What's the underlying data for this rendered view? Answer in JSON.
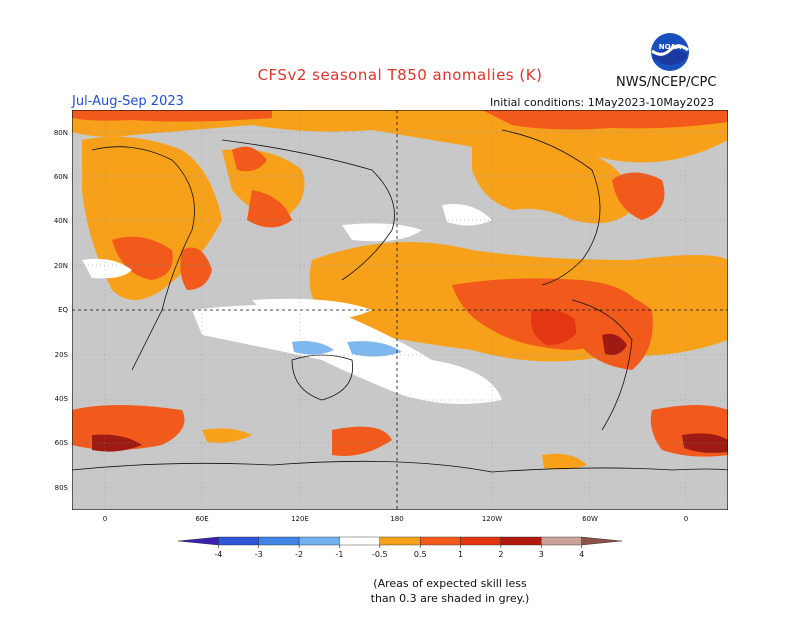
{
  "title": "CFSv2 seasonal T850 anomalies (K)",
  "season": "Jul-Aug-Sep 2023",
  "agency": "NWS/NCEP/CPC",
  "initial_conditions": "Initial conditions: 1May2023-10May2023",
  "logo_text": "NOAA",
  "latitude_labels": [
    "80N",
    "60N",
    "40N",
    "20N",
    "EQ",
    "20S",
    "40S",
    "60S",
    "80S"
  ],
  "longitude_labels": [
    "0",
    "60E",
    "120E",
    "180",
    "120W",
    "60W",
    "0"
  ],
  "colorbar": {
    "labels": [
      "-4",
      "-3",
      "-2",
      "-1",
      "-0.5",
      "0.5",
      "1",
      "2",
      "3",
      "4"
    ],
    "colors": [
      "#3a1fb0",
      "#2e55d8",
      "#3d84e6",
      "#6fb2ef",
      "#ffffff",
      "#f7a11a",
      "#f25a1c",
      "#e33712",
      "#b01a0e",
      "#c9a39a",
      "#8a5246"
    ]
  },
  "note_line1": "(Areas of expected skill less",
  "note_line2": "than 0.3 are shaded in grey.)",
  "colors": {
    "grey": "#c8c8c8",
    "orange": "#f7a11a",
    "red_orange": "#f25a1c",
    "red": "#e33712",
    "dark_red": "#9e1a12",
    "light_blue": "#7fb8f0"
  }
}
